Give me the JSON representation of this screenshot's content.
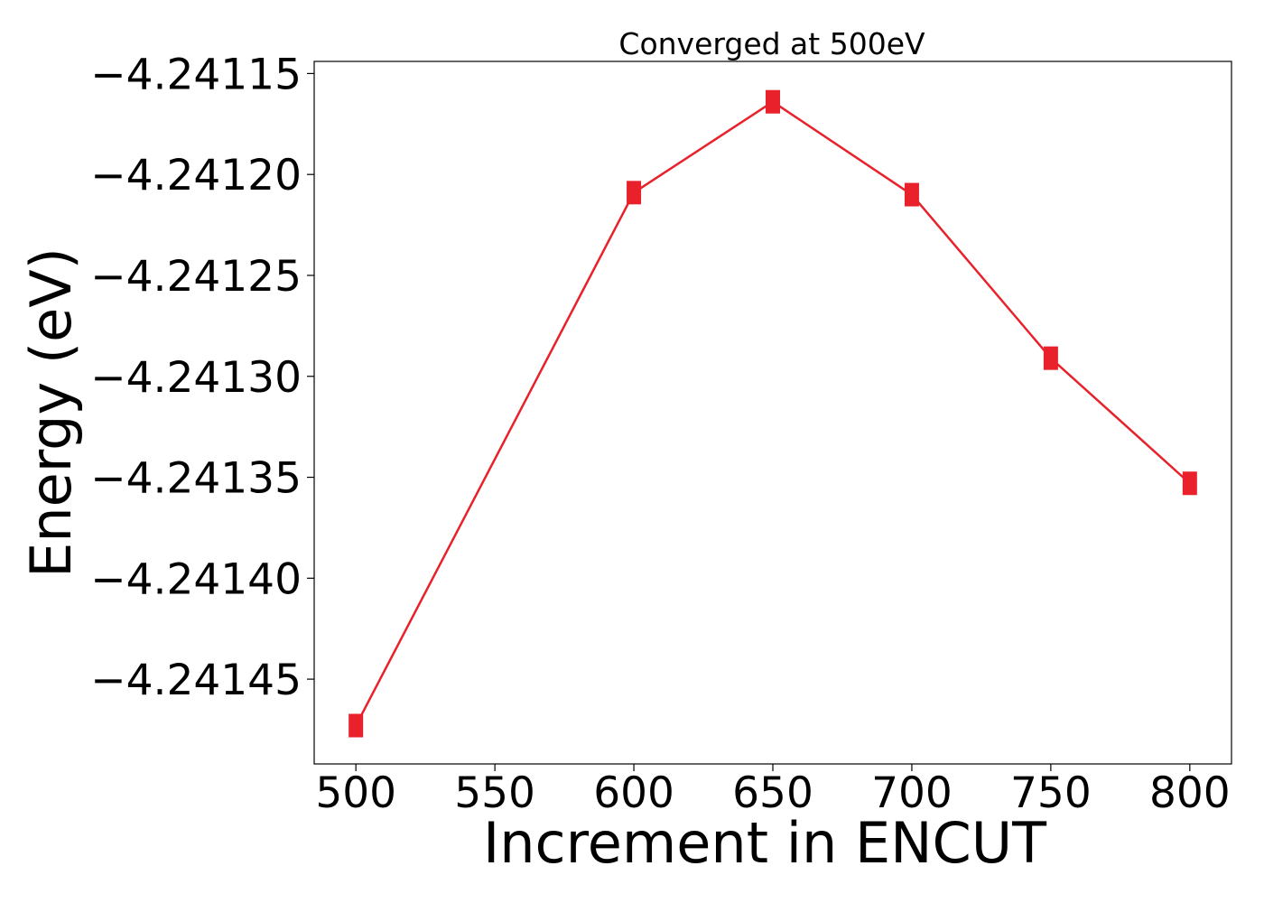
{
  "chart_data": {
    "type": "line",
    "title": "Converged at 500eV",
    "xlabel": "Increment in ENCUT",
    "ylabel": "Energy (eV)",
    "xlim": [
      485,
      815
    ],
    "ylim": [
      -4.241492,
      -4.241144
    ],
    "x_ticks": [
      500,
      550,
      600,
      650,
      700,
      750,
      800
    ],
    "x_tick_labels": [
      "500",
      "550",
      "600",
      "650",
      "700",
      "750",
      "800"
    ],
    "y_ticks": [
      -4.24115,
      -4.2412,
      -4.24125,
      -4.2413,
      -4.24135,
      -4.2414,
      -4.24145
    ],
    "y_tick_labels": [
      "−4.24115",
      "−4.24120",
      "−4.24125",
      "−4.24130",
      "−4.24135",
      "−4.24140",
      "−4.24145"
    ],
    "grid": false,
    "legend": "none",
    "marker": "square",
    "color": "#e8212a",
    "series": [
      {
        "x": [
          500,
          600,
          650,
          700,
          750,
          800
        ],
        "values": [
          -4.241473,
          -4.241209,
          -4.241164,
          -4.24121,
          -4.241291,
          -4.241353
        ]
      }
    ]
  }
}
